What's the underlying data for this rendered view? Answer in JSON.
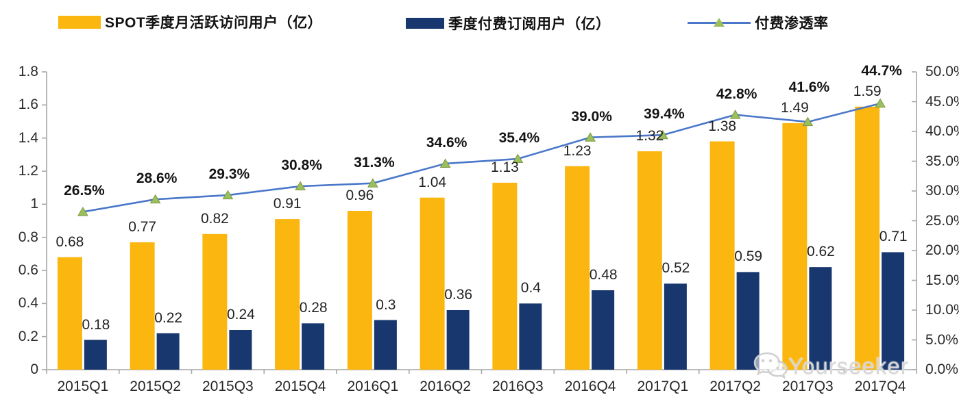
{
  "legend": {
    "items": [
      {
        "label": "SPOT季度月活跃访问用户（亿）",
        "swatch": "bar",
        "color": "#FBB60F"
      },
      {
        "label": "季度付费订阅用户（亿）",
        "swatch": "bar",
        "color": "#17376E"
      },
      {
        "label": "付费渗透率",
        "swatch": "line",
        "color": "#4A77C9",
        "marker_color": "#9CBF5D"
      }
    ]
  },
  "watermark": {
    "text": "Yourseeker",
    "icon": "wechat-bubbles-icon"
  },
  "chart_data": {
    "type": "combo-bar-line",
    "title": "",
    "categories": [
      "2015Q1",
      "2015Q2",
      "2015Q3",
      "2015Q4",
      "2016Q1",
      "2016Q2",
      "2016Q3",
      "2016Q4",
      "2017Q1",
      "2017Q2",
      "2017Q3",
      "2017Q4"
    ],
    "series": [
      {
        "name": "SPOT季度月活跃访问用户（亿）",
        "type": "bar",
        "axis": "left",
        "color": "#FBB60F",
        "values": [
          0.68,
          0.77,
          0.82,
          0.91,
          0.96,
          1.04,
          1.13,
          1.23,
          1.32,
          1.38,
          1.49,
          1.59
        ],
        "labels": [
          "0.68",
          "0.77",
          "0.82",
          "0.91",
          "0.96",
          "1.04",
          "1.13",
          "1.23",
          "1.32",
          "1.38",
          "1.49",
          "1.59"
        ]
      },
      {
        "name": "季度付费订阅用户（亿）",
        "type": "bar",
        "axis": "left",
        "color": "#17376E",
        "values": [
          0.18,
          0.22,
          0.24,
          0.28,
          0.3,
          0.36,
          0.4,
          0.48,
          0.52,
          0.59,
          0.62,
          0.71
        ],
        "labels": [
          "0.18",
          "0.22",
          "0.24",
          "0.28",
          "0.3",
          "0.36",
          "0.4",
          "0.48",
          "0.52",
          "0.59",
          "0.62",
          "0.71"
        ]
      },
      {
        "name": "付费渗透率",
        "type": "line",
        "axis": "right",
        "color": "#4A77C9",
        "marker": "triangle",
        "marker_color": "#9CBF5D",
        "marker_edge": "#7A9A40",
        "values": [
          26.5,
          28.6,
          29.3,
          30.8,
          31.3,
          34.6,
          35.4,
          39.0,
          39.4,
          42.8,
          41.6,
          44.7
        ],
        "labels": [
          "26.5%",
          "28.6%",
          "29.3%",
          "30.8%",
          "31.3%",
          "34.6%",
          "35.4%",
          "39.0%",
          "39.4%",
          "42.8%",
          "41.6%",
          "44.7%"
        ]
      }
    ],
    "left_axis": {
      "min": 0,
      "max": 1.8,
      "tick_labels": [
        "0",
        "0.2",
        "0.4",
        "0.6",
        "0.8",
        "1",
        "1.2",
        "1.4",
        "1.6",
        "1.8"
      ]
    },
    "right_axis": {
      "min": 0,
      "max": 50,
      "tick_labels": [
        "0.0%",
        "5.0%",
        "10.0%",
        "15.0%",
        "20.0%",
        "25.0%",
        "30.0%",
        "35.0%",
        "40.0%",
        "45.0%",
        "50.0%"
      ]
    },
    "grid": false,
    "legend_position": "top",
    "axis_color": "#A6A6A6"
  }
}
